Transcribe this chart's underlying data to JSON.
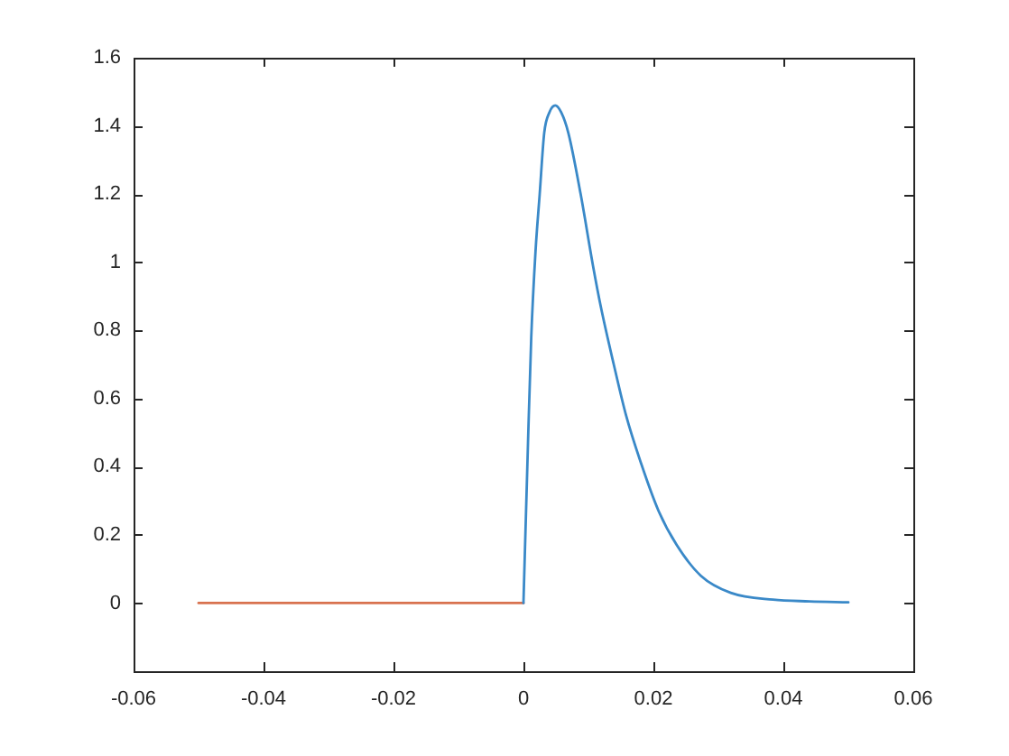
{
  "chart_data": {
    "type": "line",
    "xlim": [
      -0.06,
      0.06
    ],
    "xticks": [
      -0.06,
      -0.04,
      -0.02,
      0,
      0.02,
      0.04,
      0.06
    ],
    "ylim": [
      -0.2,
      1.6
    ],
    "yticks": [
      0,
      0.2,
      0.4,
      0.6,
      0.8,
      1,
      1.2,
      1.4,
      1.6
    ],
    "marker": "none",
    "series": [
      {
        "color": "#3a89c8",
        "x": [
          0,
          0.0007,
          0.0012,
          0.00185,
          0.0025,
          0.0032,
          0.004,
          0.0049,
          0.0058,
          0.0069,
          0.0088,
          0.0107,
          0.0119,
          0.0139,
          0.0158,
          0.0181,
          0.0208,
          0.0236,
          0.0273,
          0.0319,
          0.0384,
          0.044,
          0.05
        ],
        "values": [
          0,
          0.47,
          0.78,
          1.03,
          1.2,
          1.38,
          1.44,
          1.46,
          1.44,
          1.38,
          1.2,
          0.99,
          0.87,
          0.7,
          0.55,
          0.41,
          0.27,
          0.17,
          0.08,
          0.03,
          0.01,
          0.005,
          0.002
        ]
      },
      {
        "color": "#d8724f",
        "x": [
          -0.05,
          0
        ],
        "values": [
          0,
          0
        ]
      }
    ]
  }
}
